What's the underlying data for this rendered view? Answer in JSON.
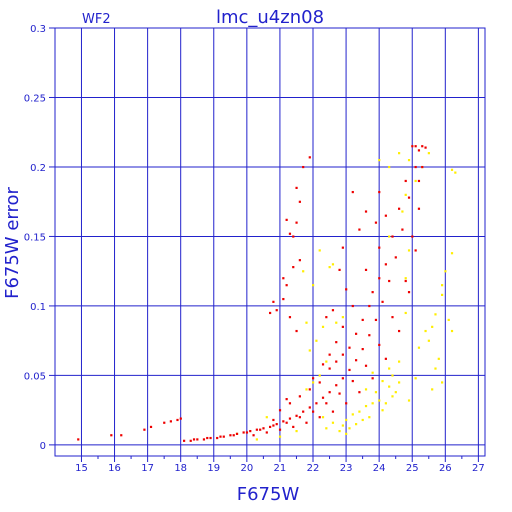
{
  "chart_data": {
    "type": "scatter",
    "title": "lmc_u4zn08",
    "chip_label": "WF2",
    "xlabel": "F675W",
    "ylabel": "F675W error",
    "xlim": [
      14.2,
      27.2
    ],
    "ylim": [
      -0.008,
      0.3
    ],
    "grid": true,
    "x_ticks": [
      "15",
      "16",
      "17",
      "18",
      "19",
      "20",
      "21",
      "22",
      "23",
      "24",
      "25",
      "26",
      "27"
    ],
    "x_tick_values": [
      15,
      16,
      17,
      18,
      19,
      20,
      21,
      22,
      23,
      24,
      25,
      26,
      27
    ],
    "y_ticks": [
      "0",
      "0.05",
      "0.1",
      "0.15",
      "0.2",
      "0.25",
      "0.3"
    ],
    "y_tick_values": [
      0,
      0.05,
      0.1,
      0.15,
      0.2,
      0.25,
      0.3
    ],
    "colors": {
      "axes": "#2222cc",
      "grid": "#2222cc",
      "main_sequence": "#ee0000",
      "outliers": "#ffee00"
    },
    "series": [
      {
        "color": "#ee0000",
        "points": [
          [
            14.9,
            0.004
          ],
          [
            15.9,
            0.007
          ],
          [
            16.2,
            0.007
          ],
          [
            16.9,
            0.011
          ],
          [
            17.1,
            0.013
          ],
          [
            17.5,
            0.016
          ],
          [
            17.7,
            0.017
          ],
          [
            17.9,
            0.018
          ],
          [
            18.0,
            0.019
          ],
          [
            18.1,
            0.003
          ],
          [
            18.3,
            0.003
          ],
          [
            18.5,
            0.004
          ],
          [
            18.7,
            0.004
          ],
          [
            18.9,
            0.005
          ],
          [
            19.1,
            0.005
          ],
          [
            19.3,
            0.006
          ],
          [
            19.5,
            0.007
          ],
          [
            19.7,
            0.008
          ],
          [
            19.9,
            0.009
          ],
          [
            20.1,
            0.01
          ],
          [
            20.3,
            0.011
          ],
          [
            20.5,
            0.012
          ],
          [
            20.7,
            0.013
          ],
          [
            20.9,
            0.015
          ],
          [
            21.1,
            0.017
          ],
          [
            21.3,
            0.019
          ],
          [
            21.5,
            0.021
          ],
          [
            21.7,
            0.024
          ],
          [
            21.9,
            0.027
          ],
          [
            22.1,
            0.03
          ],
          [
            22.3,
            0.034
          ],
          [
            22.5,
            0.038
          ],
          [
            22.7,
            0.043
          ],
          [
            22.9,
            0.048
          ],
          [
            23.1,
            0.054
          ],
          [
            23.3,
            0.061
          ],
          [
            23.5,
            0.069
          ],
          [
            23.7,
            0.079
          ],
          [
            23.9,
            0.09
          ],
          [
            24.1,
            0.103
          ],
          [
            24.3,
            0.118
          ],
          [
            24.5,
            0.135
          ],
          [
            24.7,
            0.155
          ],
          [
            24.9,
            0.178
          ],
          [
            25.1,
            0.2
          ],
          [
            25.2,
            0.212
          ],
          [
            25.3,
            0.215
          ],
          [
            20.2,
            0.007
          ],
          [
            20.6,
            0.009
          ],
          [
            21.0,
            0.011
          ],
          [
            21.4,
            0.013
          ],
          [
            21.8,
            0.016
          ],
          [
            22.2,
            0.02
          ],
          [
            22.6,
            0.024
          ],
          [
            23.0,
            0.03
          ],
          [
            23.4,
            0.038
          ],
          [
            23.8,
            0.048
          ],
          [
            24.2,
            0.062
          ],
          [
            24.6,
            0.082
          ],
          [
            24.9,
            0.11
          ],
          [
            25.1,
            0.14
          ],
          [
            25.2,
            0.17
          ],
          [
            25.3,
            0.2
          ],
          [
            18.4,
            0.004
          ],
          [
            18.8,
            0.005
          ],
          [
            19.2,
            0.006
          ],
          [
            19.6,
            0.007
          ],
          [
            20.0,
            0.009
          ],
          [
            20.4,
            0.011
          ],
          [
            20.8,
            0.014
          ],
          [
            21.2,
            0.016
          ],
          [
            21.6,
            0.02
          ],
          [
            22.0,
            0.024
          ],
          [
            22.4,
            0.03
          ],
          [
            22.8,
            0.037
          ],
          [
            23.2,
            0.046
          ],
          [
            23.6,
            0.057
          ],
          [
            24.0,
            0.072
          ],
          [
            24.4,
            0.092
          ],
          [
            24.8,
            0.118
          ],
          [
            25.0,
            0.15
          ],
          [
            25.2,
            0.19
          ],
          [
            25.0,
            0.215
          ],
          [
            25.1,
            0.215
          ],
          [
            25.4,
            0.214
          ],
          [
            20.8,
            0.018
          ],
          [
            21.0,
            0.025
          ],
          [
            21.3,
            0.03
          ],
          [
            21.2,
            0.033
          ],
          [
            21.6,
            0.035
          ],
          [
            21.9,
            0.04
          ],
          [
            22.0,
            0.048
          ],
          [
            22.2,
            0.045
          ],
          [
            22.5,
            0.055
          ],
          [
            22.7,
            0.06
          ],
          [
            22.9,
            0.065
          ],
          [
            23.1,
            0.07
          ],
          [
            23.3,
            0.08
          ],
          [
            23.5,
            0.09
          ],
          [
            23.7,
            0.1
          ],
          [
            23.8,
            0.11
          ],
          [
            24.0,
            0.12
          ],
          [
            24.2,
            0.13
          ],
          [
            24.4,
            0.15
          ],
          [
            24.6,
            0.17
          ],
          [
            24.8,
            0.19
          ],
          [
            21.3,
            0.152
          ],
          [
            21.2,
            0.162
          ],
          [
            21.5,
            0.16
          ],
          [
            21.6,
            0.175
          ],
          [
            21.5,
            0.185
          ],
          [
            21.7,
            0.2
          ],
          [
            21.9,
            0.207
          ],
          [
            21.4,
            0.15
          ],
          [
            21.1,
            0.12
          ],
          [
            21.2,
            0.115
          ],
          [
            21.6,
            0.133
          ],
          [
            21.4,
            0.128
          ],
          [
            20.9,
            0.097
          ],
          [
            20.8,
            0.103
          ],
          [
            21.1,
            0.105
          ],
          [
            21.3,
            0.092
          ],
          [
            21.5,
            0.082
          ],
          [
            20.7,
            0.095
          ],
          [
            23.2,
            0.182
          ],
          [
            22.9,
            0.142
          ],
          [
            22.8,
            0.126
          ],
          [
            23.0,
            0.112
          ],
          [
            22.6,
            0.097
          ],
          [
            22.4,
            0.092
          ],
          [
            23.6,
            0.168
          ],
          [
            23.4,
            0.155
          ],
          [
            23.9,
            0.16
          ],
          [
            24.0,
            0.182
          ],
          [
            24.2,
            0.165
          ],
          [
            24.0,
            0.142
          ],
          [
            23.6,
            0.126
          ],
          [
            23.2,
            0.1
          ],
          [
            22.9,
            0.085
          ],
          [
            22.7,
            0.074
          ],
          [
            22.5,
            0.065
          ],
          [
            22.3,
            0.058
          ]
        ]
      },
      {
        "color": "#ffee00",
        "points": [
          [
            26.2,
            0.198
          ],
          [
            26.3,
            0.196
          ],
          [
            26.2,
            0.138
          ],
          [
            26.0,
            0.125
          ],
          [
            25.9,
            0.115
          ],
          [
            26.1,
            0.09
          ],
          [
            26.2,
            0.082
          ],
          [
            25.6,
            0.085
          ],
          [
            25.5,
            0.075
          ],
          [
            25.8,
            0.062
          ],
          [
            25.9,
            0.045
          ],
          [
            25.6,
            0.04
          ],
          [
            25.7,
            0.055
          ],
          [
            25.4,
            0.082
          ],
          [
            25.2,
            0.07
          ],
          [
            24.8,
            0.095
          ],
          [
            24.8,
            0.12
          ],
          [
            24.9,
            0.14
          ],
          [
            24.6,
            0.06
          ],
          [
            24.6,
            0.045
          ],
          [
            24.4,
            0.05
          ],
          [
            24.5,
            0.038
          ],
          [
            24.3,
            0.042
          ],
          [
            24.2,
            0.03
          ],
          [
            24.4,
            0.035
          ],
          [
            24.0,
            0.032
          ],
          [
            24.1,
            0.025
          ],
          [
            23.9,
            0.038
          ],
          [
            23.8,
            0.03
          ],
          [
            23.7,
            0.02
          ],
          [
            23.6,
            0.028
          ],
          [
            23.5,
            0.018
          ],
          [
            23.4,
            0.024
          ],
          [
            23.3,
            0.015
          ],
          [
            23.2,
            0.022
          ],
          [
            23.1,
            0.012
          ],
          [
            23.0,
            0.018
          ],
          [
            22.9,
            0.014
          ],
          [
            22.8,
            0.01
          ],
          [
            23.0,
            0.008
          ],
          [
            22.6,
            0.016
          ],
          [
            22.4,
            0.012
          ],
          [
            22.3,
            0.02
          ],
          [
            22.2,
            0.05
          ],
          [
            22.4,
            0.06
          ],
          [
            22.0,
            0.045
          ],
          [
            21.8,
            0.04
          ],
          [
            21.9,
            0.068
          ],
          [
            22.1,
            0.075
          ],
          [
            21.8,
            0.088
          ],
          [
            22.3,
            0.085
          ],
          [
            22.7,
            0.088
          ],
          [
            22.9,
            0.092
          ],
          [
            22.5,
            0.128
          ],
          [
            22.6,
            0.13
          ],
          [
            21.7,
            0.125
          ],
          [
            22.2,
            0.14
          ],
          [
            22.0,
            0.115
          ],
          [
            24.0,
            0.205
          ],
          [
            24.3,
            0.2
          ],
          [
            24.8,
            0.18
          ],
          [
            25.5,
            0.21
          ],
          [
            25.3,
            0.2
          ],
          [
            24.6,
            0.21
          ],
          [
            24.9,
            0.205
          ],
          [
            25.1,
            0.19
          ],
          [
            24.3,
            0.15
          ],
          [
            24.7,
            0.168
          ],
          [
            24.1,
            0.046
          ],
          [
            24.3,
            0.055
          ],
          [
            23.8,
            0.052
          ],
          [
            23.6,
            0.04
          ],
          [
            19.7,
            0.008
          ],
          [
            20.3,
            0.004
          ],
          [
            21.0,
            0.006
          ],
          [
            21.5,
            0.01
          ],
          [
            20.6,
            0.02
          ],
          [
            25.9,
            0.108
          ],
          [
            25.7,
            0.094
          ],
          [
            25.1,
            0.048
          ],
          [
            24.9,
            0.032
          ]
        ]
      }
    ]
  }
}
